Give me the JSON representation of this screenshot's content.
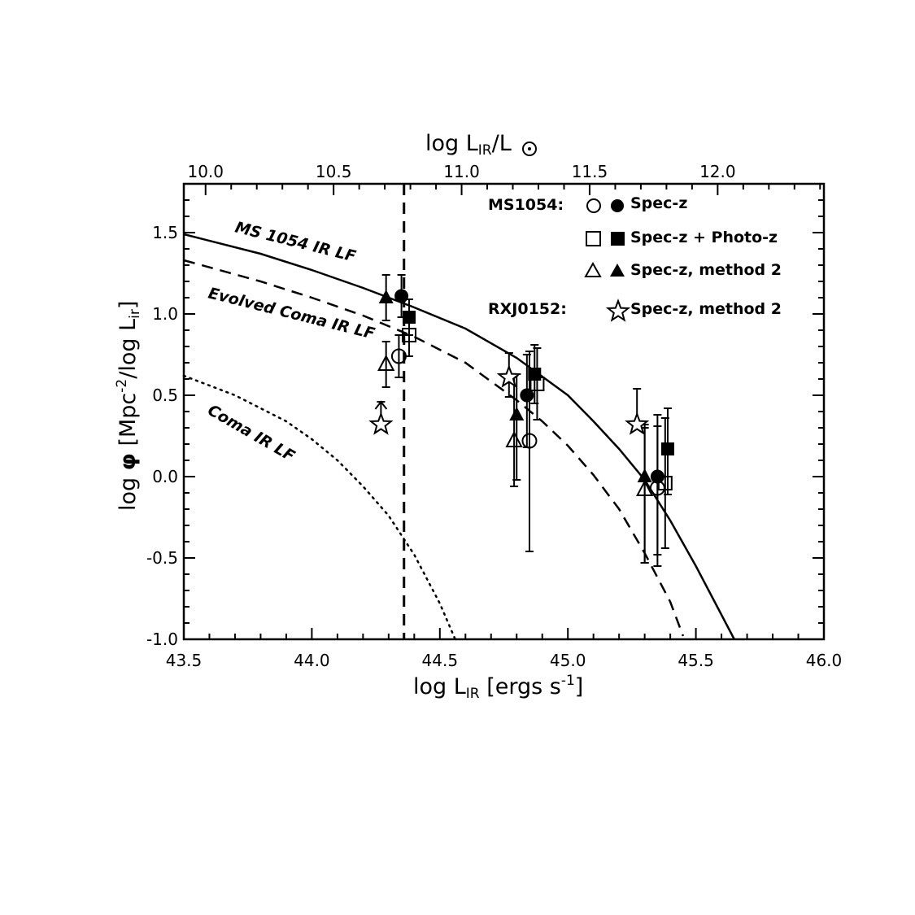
{
  "chart_data": {
    "type": "scatter",
    "xlabel": "log L_IR [ergs s^-1]",
    "xlabel_main": "log L",
    "xlabel_sub": "IR",
    "xlabel_unit": " [ergs s",
    "xlabel_sup": "-1",
    "xlabel_end": "]",
    "x2label_main": "log L",
    "x2label_sub": "IR",
    "x2label_mid": "/L",
    "ylabel_main": "log ",
    "ylabel_phi": "φ",
    "ylabel_mid": " [Mpc",
    "ylabel_sup": "-2",
    "ylabel_mid2": "/log L",
    "ylabel_sub": "ir",
    "ylabel_end": "]",
    "xlim": [
      43.5,
      46.0
    ],
    "ylim": [
      -1.0,
      1.8
    ],
    "x_ticks": [
      "43.5",
      "44.0",
      "44.5",
      "45.0",
      "45.5",
      "46.0"
    ],
    "y_ticks": [
      "-1.0",
      "-0.5",
      "0.0",
      "0.5",
      "1.0",
      "1.5"
    ],
    "top_axis_ticks": [
      "10.0",
      "10.5",
      "11.0",
      "11.5",
      "12.0"
    ],
    "top_axis_values": [
      10.0,
      10.5,
      11.0,
      11.5,
      12.0
    ],
    "top_axis_offset": 33.585,
    "vertical_line_x": 44.36,
    "curves": [
      {
        "label": "MS 1054 IR LF",
        "style": "solid",
        "x": [
          43.5,
          43.8,
          44.0,
          44.2,
          44.4,
          44.6,
          44.8,
          45.0,
          45.1,
          45.2,
          45.3,
          45.4,
          45.5,
          45.6,
          45.65
        ],
        "y": [
          1.49,
          1.37,
          1.27,
          1.16,
          1.04,
          0.91,
          0.73,
          0.5,
          0.34,
          0.17,
          -0.02,
          -0.27,
          -0.55,
          -0.85,
          -1.0
        ]
      },
      {
        "label": "Evolved Coma IR LF",
        "style": "dashed",
        "x": [
          43.5,
          43.8,
          44.0,
          44.2,
          44.4,
          44.6,
          44.8,
          44.9,
          45.0,
          45.1,
          45.2,
          45.3,
          45.4,
          45.45
        ],
        "y": [
          1.33,
          1.2,
          1.1,
          0.99,
          0.86,
          0.7,
          0.47,
          0.34,
          0.19,
          0.01,
          -0.2,
          -0.47,
          -0.77,
          -0.98
        ]
      },
      {
        "label": "Coma IR LF",
        "style": "dotted",
        "x": [
          43.5,
          43.7,
          43.9,
          44.0,
          44.1,
          44.2,
          44.3,
          44.4,
          44.5,
          44.56
        ],
        "y": [
          0.62,
          0.5,
          0.34,
          0.23,
          0.1,
          -0.06,
          -0.24,
          -0.48,
          -0.78,
          -1.0
        ]
      }
    ],
    "series": [
      {
        "group": "MS1054",
        "marker": "circle-open",
        "x": [
          44.34,
          44.85,
          45.35
        ],
        "y": [
          0.74,
          0.22,
          -0.07
        ],
        "err_up": [
          0.13,
          0.55,
          0.38
        ],
        "err_down": [
          0.13,
          0.68,
          0.48
        ]
      },
      {
        "group": "MS1054",
        "marker": "circle-filled",
        "x": [
          44.35,
          44.84,
          45.35
        ],
        "y": [
          1.11,
          0.5,
          0.0
        ],
        "err_up": [
          0.13,
          0.25,
          0.38
        ],
        "err_down": [
          0.13,
          0.32,
          0.48
        ]
      },
      {
        "group": "MS1054",
        "marker": "square-open",
        "x": [
          44.38,
          44.88,
          45.38
        ],
        "y": [
          0.87,
          0.57,
          -0.04
        ],
        "err_up": [
          0.13,
          0.22,
          0.4
        ],
        "err_down": [
          0.13,
          0.22,
          0.4
        ]
      },
      {
        "group": "MS1054",
        "marker": "square-filled",
        "x": [
          44.38,
          44.87,
          45.39
        ],
        "y": [
          0.98,
          0.63,
          0.17
        ],
        "err_up": [
          0.11,
          0.18,
          0.25
        ],
        "err_down": [
          0.11,
          0.18,
          0.28
        ]
      },
      {
        "group": "MS1054",
        "marker": "triangle-open",
        "x": [
          44.29,
          44.79,
          45.3
        ],
        "y": [
          0.69,
          0.22,
          -0.08
        ],
        "err_up": [
          0.14,
          0.4,
          0.4
        ],
        "err_down": [
          0.14,
          0.28,
          0.45
        ]
      },
      {
        "group": "MS1054",
        "marker": "triangle-filled",
        "x": [
          44.29,
          44.8,
          45.3
        ],
        "y": [
          1.1,
          0.38,
          0.0
        ],
        "err_up": [
          0.14,
          0.25,
          0.3
        ],
        "err_down": [
          0.14,
          0.4,
          0.53
        ]
      },
      {
        "group": "RXJ0152",
        "marker": "star-open",
        "x": [
          44.27,
          44.77,
          45.27
        ],
        "y": [
          0.32,
          0.61,
          0.32
        ],
        "err_up": [
          0.14,
          0.15,
          0.22
        ],
        "err_down": [
          0.0,
          0.12,
          0.0
        ],
        "lower_limit": [
          true,
          false,
          false
        ]
      }
    ],
    "legend": {
      "ms1054_label": "MS1054:",
      "rxj_label": "RXJ0152:",
      "entries": [
        "Spec-z",
        "Spec-z + Photo-z",
        "Spec-z, method 2",
        "Spec-z, method 2"
      ]
    },
    "curve_labels": [
      "MS 1054 IR LF",
      "Evolved Coma IR LF",
      "Coma IR LF"
    ]
  }
}
